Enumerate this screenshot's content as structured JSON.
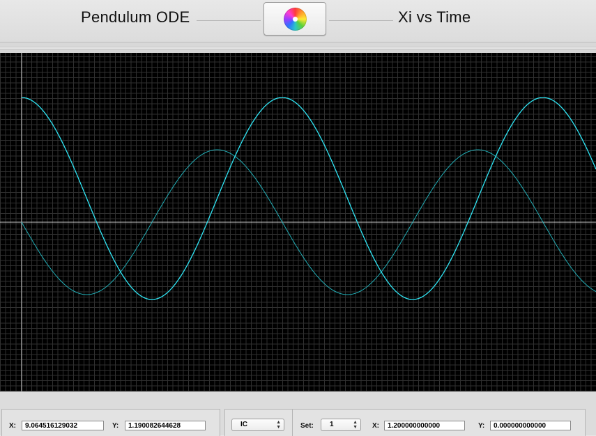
{
  "header": {
    "left_title": "Pendulum ODE",
    "right_title": "Xi vs Time",
    "logo_icon": "color-wheel-icon"
  },
  "plot": {
    "background": "#000000",
    "curve_color": "#2fe6f5",
    "curve2_color": "#21aeb6"
  },
  "cursor": {
    "x_label": "X:",
    "x_value": "9.064516129032",
    "y_label": "Y:",
    "y_value": "1.190082644628"
  },
  "controls": {
    "mode_selected": "IC",
    "set_label": "Set:",
    "set_value": "1",
    "x_label": "X:",
    "x_value": "1.200000000000",
    "y_label": "Y:",
    "y_value": "0.000000000000"
  }
}
